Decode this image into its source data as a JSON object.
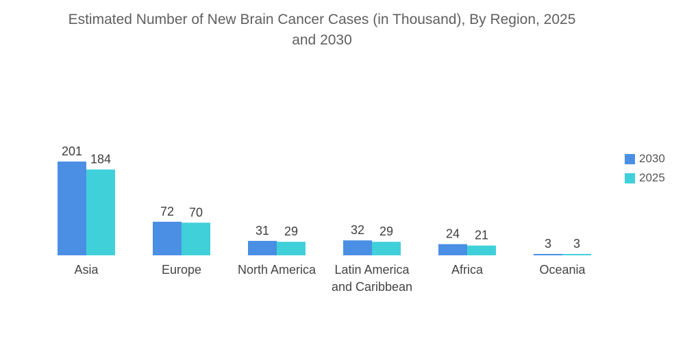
{
  "chart_data": {
    "type": "bar",
    "title": "Estimated Number of New Brain Cancer Cases (in Thousand), By Region, 2025 and 2030",
    "title_lines": [
      "Estimated Number of New Brain Cancer Cases (in Thousand), By Region, 2025",
      "and 2030"
    ],
    "categories": [
      [
        "Asia"
      ],
      [
        "Europe"
      ],
      [
        "North America"
      ],
      [
        "Latin America",
        "and Caribbean"
      ],
      [
        "Africa"
      ],
      [
        "Oceania"
      ]
    ],
    "series": [
      {
        "name": "2030",
        "color": "#4a8fe4",
        "values": [
          201,
          72,
          31,
          32,
          24,
          3
        ]
      },
      {
        "name": "2025",
        "color": "#40d0da",
        "values": [
          184,
          70,
          29,
          29,
          21,
          3
        ]
      }
    ],
    "legend_position": "right",
    "grid": false,
    "ylim": [
      0,
      201
    ]
  }
}
